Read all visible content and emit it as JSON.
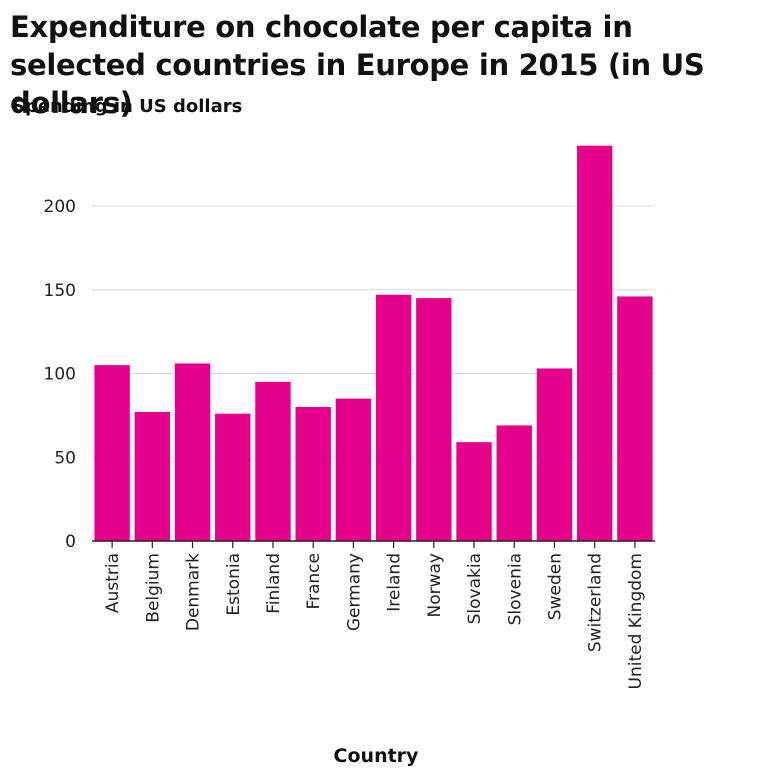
{
  "title": "Expenditure on chocolate per capita in selected countries in Europe in 2015 (in US dollars)",
  "chart_data": {
    "type": "bar",
    "title": "Expenditure on chocolate per capita in selected countries in Europe in 2015 (in US dollars)",
    "xlabel": "Country",
    "ylabel": "Spending in US dollars",
    "categories": [
      "Austria",
      "Belgium",
      "Denmark",
      "Estonia",
      "Finland",
      "France",
      "Germany",
      "Ireland",
      "Norway",
      "Slovakia",
      "Slovenia",
      "Sweden",
      "Switzerland",
      "United Kingdom"
    ],
    "values": [
      105,
      77,
      106,
      76,
      95,
      80,
      85,
      147,
      145,
      59,
      69,
      103,
      236,
      146
    ],
    "yticks": [
      0,
      50,
      100,
      150,
      200
    ],
    "ylim": [
      0,
      236
    ],
    "grid": true,
    "bar_color": "#e5008b",
    "grid_color": "#d9d9d9",
    "axis_color": "#222222"
  }
}
